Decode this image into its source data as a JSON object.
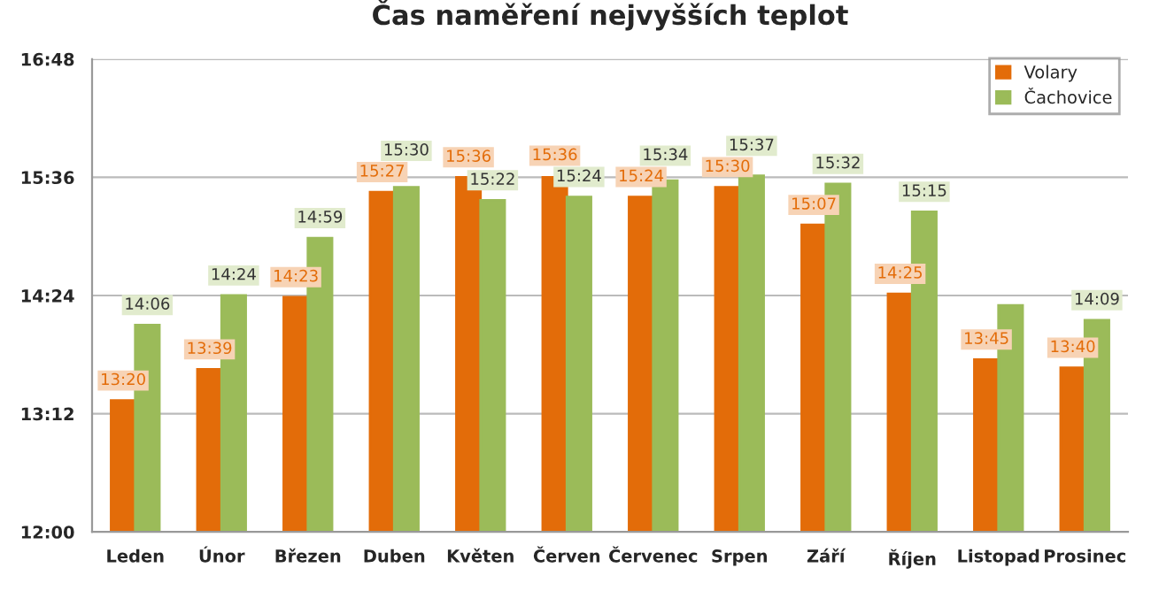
{
  "chart_data": {
    "type": "bar",
    "title": "Čas naměření nejvyšších teplot",
    "categories": [
      "Leden",
      "Únor",
      "Březen",
      "Duben",
      "Květen",
      "Červen",
      "Červenec",
      "Srpen",
      "Září",
      "Říjen",
      "Listopad",
      "Prosinec"
    ],
    "series": [
      {
        "name": "Volary",
        "color": "#e36c09",
        "values": [
          13.3333,
          13.65,
          14.3833,
          15.45,
          15.6,
          15.6,
          15.4,
          15.5,
          15.1167,
          14.4167,
          13.75,
          13.6667
        ],
        "value_labels": [
          "13:20",
          "13:39",
          "14:23",
          "15:27",
          "15:36",
          "15:36",
          "15:24",
          "15:30",
          "15:07",
          "14:25",
          "13:45",
          "13:40"
        ]
      },
      {
        "name": "Čachovice",
        "color": "#9bbb59",
        "values": [
          14.1,
          14.4,
          14.9833,
          15.5,
          15.3667,
          15.4,
          15.5667,
          15.6167,
          15.5333,
          15.25,
          14.3,
          14.15
        ],
        "value_labels": [
          "14:06",
          "14:24",
          "14:59",
          "15:30",
          "15:22",
          "15:24",
          "15:34",
          "15:37",
          "15:32",
          "15:15",
          null,
          "14:09"
        ]
      }
    ],
    "ylim": [
      12,
      16.8
    ],
    "yticks": [
      {
        "value": 12,
        "label": "12:00"
      },
      {
        "value": 13.2,
        "label": "13:12"
      },
      {
        "value": 14.4,
        "label": "14:24"
      },
      {
        "value": 15.6,
        "label": "15:36"
      },
      {
        "value": 16.8,
        "label": "16:48"
      }
    ],
    "grid": "y",
    "legend": "top right"
  }
}
